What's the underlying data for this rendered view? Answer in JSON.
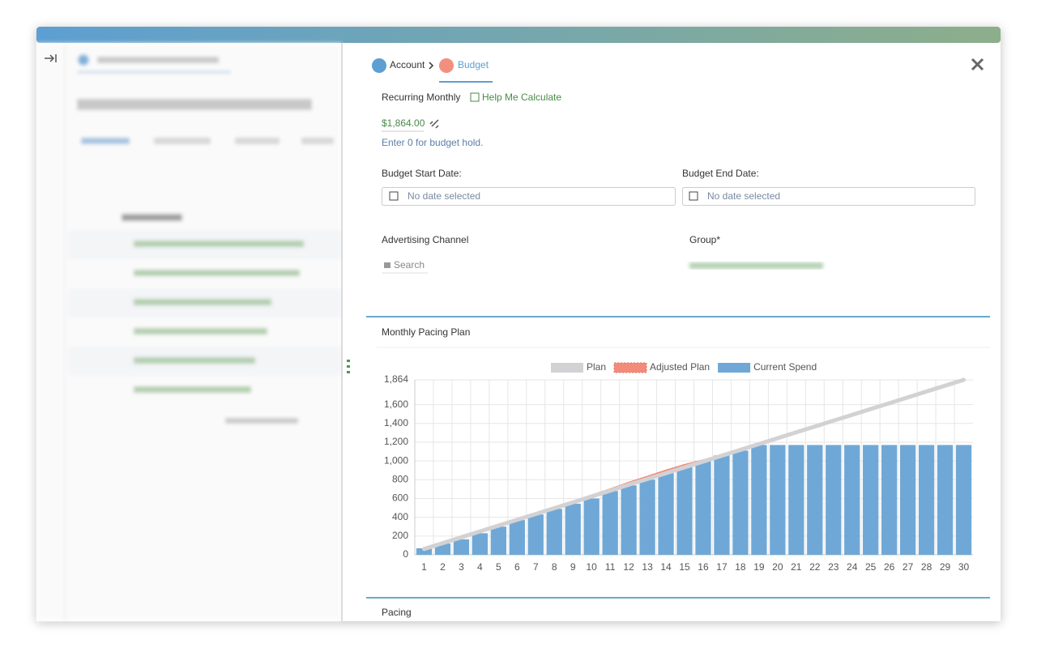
{
  "breadcrumb": [
    "Account",
    "Budget"
  ],
  "form": {
    "recurring_label": "Recurring Monthly",
    "help_link": "Help Me Calculate",
    "amount": "$1,864.00",
    "hint": "Enter 0 for budget hold.",
    "start_label": "Budget Start Date:",
    "start_placeholder": "No date selected",
    "end_label": "Budget End Date:",
    "end_placeholder": "No date selected",
    "channel_label": "Advertising Channel",
    "channel_value": "Search",
    "group_label": "Group*"
  },
  "sections": {
    "pacing": "Pacing"
  },
  "chart_data": {
    "type": "bar",
    "title": "Monthly Pacing Plan",
    "categories": [
      "1",
      "2",
      "3",
      "4",
      "5",
      "6",
      "7",
      "8",
      "9",
      "10",
      "11",
      "12",
      "13",
      "14",
      "15",
      "16",
      "17",
      "18",
      "19",
      "20",
      "21",
      "22",
      "23",
      "24",
      "25",
      "26",
      "27",
      "28",
      "29",
      "30"
    ],
    "series": [
      {
        "name": "Plan",
        "color": "#d3d1d4",
        "type": "line",
        "values": [
          62,
          124,
          186,
          249,
          311,
          373,
          435,
          497,
          559,
          621,
          683,
          746,
          808,
          870,
          932,
          994,
          1056,
          1118,
          1180,
          1243,
          1305,
          1367,
          1429,
          1491,
          1553,
          1615,
          1677,
          1740,
          1802,
          1864
        ]
      },
      {
        "name": "Adjusted Plan",
        "color": "#f28b7a",
        "type": "line",
        "dashed": true,
        "values": [
          70,
          130,
          195,
          255,
          320,
          380,
          440,
          500,
          565,
          630,
          695,
          765,
          830,
          895,
          955,
          1005,
          1060,
          1115,
          1175,
          1243,
          1305,
          1367,
          1429,
          1491,
          1553,
          1615,
          1677,
          1740,
          1802,
          1864
        ]
      },
      {
        "name": "Current Spend",
        "color": "#6fa8d6",
        "type": "bar",
        "values": [
          70,
          120,
          165,
          230,
          300,
          370,
          430,
          490,
          545,
          600,
          680,
          740,
          800,
          870,
          940,
          1000,
          1060,
          1110,
          1170,
          1170,
          1170,
          1170,
          1170,
          1170,
          1170,
          1170,
          1170,
          1170,
          1170,
          1170
        ]
      }
    ],
    "ylim": [
      0,
      1864
    ],
    "yticks": [
      0,
      200,
      400,
      600,
      800,
      {
        "value": 1000,
        "label": "1,000"
      },
      {
        "value": 1200,
        "label": "1,200"
      },
      {
        "value": 1400,
        "label": "1,400"
      },
      {
        "value": 1600,
        "label": "1,600"
      },
      {
        "value": 1864,
        "label": "1,864"
      }
    ],
    "grid": true
  }
}
